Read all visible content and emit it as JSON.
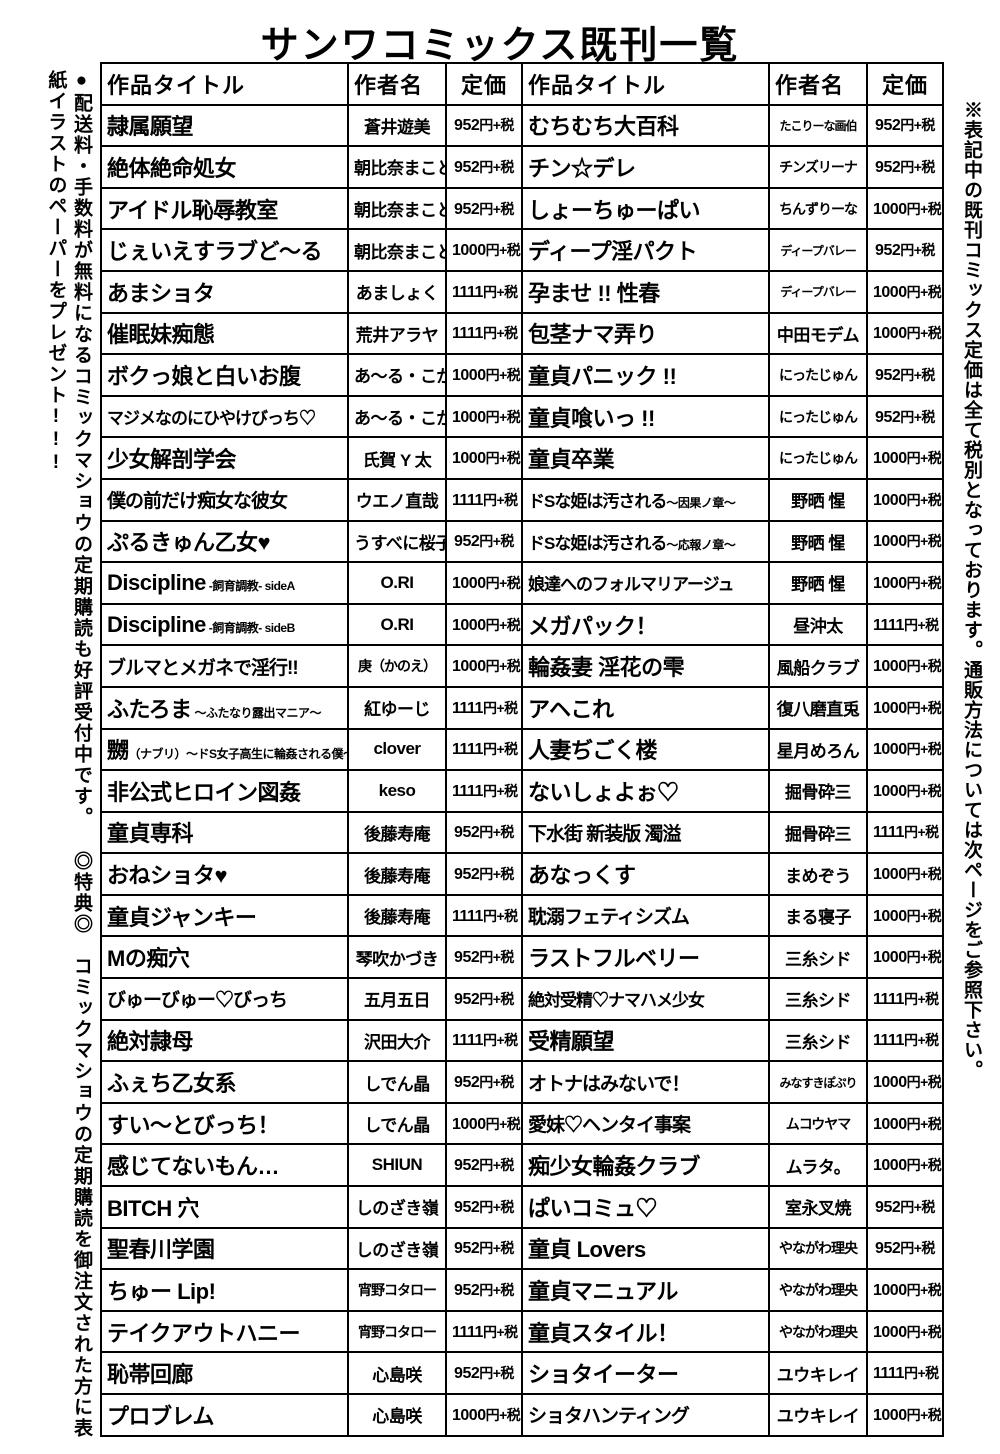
{
  "title": "サンワコミックス既刊一覧",
  "headers": {
    "title": "作品タイトル",
    "author": "作者名",
    "price": "定価"
  },
  "left_notes": {
    "line1": "●配送料・手数料が無料になるコミックマショウの定期購読も好評受付中です。",
    "line2": "◎特典◎　コミックマショウの定期購読を御注文された方に表紙イラストのペーパーをプレゼント!!!"
  },
  "right_note": "※表記中の既刊コミックス定価は全て税別となっております。通販方法については次ページをご参照下さい。",
  "price_suffix": "円+税",
  "left_rows": [
    {
      "title": "隷属願望",
      "author": "蒼井遊美",
      "price": "952"
    },
    {
      "title": "絶体絶命処女",
      "author": "朝比奈まこと",
      "price": "952"
    },
    {
      "title": "アイドル恥辱教室",
      "author": "朝比奈まこと",
      "price": "952"
    },
    {
      "title": "じぇいえすラブど〜る",
      "author": "朝比奈まこと",
      "price": "1000"
    },
    {
      "title": "あまショタ",
      "author": "あましょく",
      "price": "1111"
    },
    {
      "title": "催眠妹痴態",
      "author": "荒井アラヤ",
      "price": "1111"
    },
    {
      "title": "ボクっ娘と白いお腹",
      "author": "あ〜る・こが",
      "price": "1000"
    },
    {
      "title": "マジメなのにひやけびっち♡",
      "author": "あ〜る・こが",
      "price": "1000",
      "shrink": "shrink-2"
    },
    {
      "title": "少女解剖学会",
      "author": "氏賀 Y 太",
      "price": "1000"
    },
    {
      "title": "僕の前だけ痴女な彼女",
      "author": "ウエノ直哉",
      "price": "1111",
      "shrink": "shrink-1"
    },
    {
      "title": "ぷるきゅん乙女♥",
      "author": "うすべに桜子",
      "price": "952"
    },
    {
      "title": "Discipline",
      "sub": " ‐飼育調教‐ sideA",
      "author": "O.RI",
      "price": "1000"
    },
    {
      "title": "Discipline",
      "sub": " ‐飼育調教‐ sideB",
      "author": "O.RI",
      "price": "1000"
    },
    {
      "title": "ブルマとメガネで淫行!!",
      "author": "庚（かのえ）",
      "price": "1000",
      "shrink": "shrink-1",
      "au_shrink": "au-shrink"
    },
    {
      "title": "ふたろま",
      "sub": " 〜ふたなり露出マニア〜",
      "author": "紅ゆーじ",
      "price": "1111"
    },
    {
      "title": "嬲",
      "sub": "（ナブリ）〜ドS女子高生に輪姦される僕〜",
      "author": "clover",
      "price": "1111"
    },
    {
      "title": "非公式ヒロイン図姦",
      "author": "keso",
      "price": "1111"
    },
    {
      "title": "童貞専科",
      "author": "後藤寿庵",
      "price": "952"
    },
    {
      "title": "おねショタ♥",
      "author": "後藤寿庵",
      "price": "952"
    },
    {
      "title": "童貞ジャンキー",
      "author": "後藤寿庵",
      "price": "1111"
    },
    {
      "title": "Mの痴穴",
      "author": "琴吹かづき",
      "price": "952"
    },
    {
      "title": "びゅーびゅー♡びっち",
      "author": "五月五日",
      "price": "952",
      "shrink": "shrink-1"
    },
    {
      "title": "絶対隷母",
      "author": "沢田大介",
      "price": "1111"
    },
    {
      "title": "ふぇち乙女系",
      "author": "しでん晶",
      "price": "952"
    },
    {
      "title": "すい〜とびっち！",
      "author": "しでん晶",
      "price": "1000"
    },
    {
      "title": "感じてないもん…",
      "author": "SHIUN",
      "price": "952"
    },
    {
      "title": "BITCH 穴",
      "author": "しのざき嶺",
      "price": "952"
    },
    {
      "title": "聖春川学園",
      "author": "しのざき嶺",
      "price": "952"
    },
    {
      "title": "ちゅー Lip!",
      "author": "宵野コタロー",
      "price": "952",
      "au_shrink": "au-shrink"
    },
    {
      "title": "テイクアウトハニー",
      "author": "宵野コタロー",
      "price": "1111",
      "au_shrink": "au-shrink"
    },
    {
      "title": "恥帯回廊",
      "author": "心島咲",
      "price": "952"
    },
    {
      "title": "プロブレム",
      "author": "心島咲",
      "price": "1000"
    }
  ],
  "right_rows": [
    {
      "title": "むちむち大百科",
      "author": "たこりーな画伯",
      "price": "952",
      "au_shrink": "au-shrink2"
    },
    {
      "title": "チン☆デレ",
      "author": "チンズリーナ",
      "price": "952",
      "au_shrink": "au-shrink"
    },
    {
      "title": "しょーちゅーぱい",
      "author": "ちんずりーな",
      "price": "1000",
      "au_shrink": "au-shrink"
    },
    {
      "title": "ディープ淫パクト",
      "author": "ディープバレー",
      "price": "952",
      "au_shrink": "au-shrink2"
    },
    {
      "title": "孕ませ !! 性春",
      "author": "ディープバレー",
      "price": "1000",
      "au_shrink": "au-shrink2"
    },
    {
      "title": "包茎ナマ弄り",
      "author": "中田モデム",
      "price": "1000"
    },
    {
      "title": "童貞パニック !!",
      "author": "にったじゅん",
      "price": "952",
      "au_shrink": "au-shrink"
    },
    {
      "title": "童貞喰いっ !!",
      "author": "にったじゅん",
      "price": "952",
      "au_shrink": "au-shrink"
    },
    {
      "title": "童貞卒業",
      "author": "にったじゅん",
      "price": "1000",
      "au_shrink": "au-shrink"
    },
    {
      "title": "ドSな姫は汚される",
      "sub": "〜因果ノ章〜",
      "author": "野晒 惺",
      "price": "1000",
      "shrink": "shrink-2"
    },
    {
      "title": "ドSな姫は汚される",
      "sub": "〜応報ノ章〜",
      "author": "野晒 惺",
      "price": "1000",
      "shrink": "shrink-2"
    },
    {
      "title": "娘達へのフォルマリアージュ",
      "author": "野晒 惺",
      "price": "1000",
      "shrink": "shrink-2"
    },
    {
      "title": "メガパック！",
      "author": "昼沖太",
      "price": "1111"
    },
    {
      "title": "輪姦妻 淫花の雫",
      "author": "風船クラブ",
      "price": "1000"
    },
    {
      "title": "アヘこれ",
      "author": "復八磨直兎",
      "price": "1000"
    },
    {
      "title": "人妻ぢごく楼",
      "author": "星月めろん",
      "price": "1000"
    },
    {
      "title": "ないしょよぉ♡",
      "author": "掘骨砕三",
      "price": "1000"
    },
    {
      "title": "下水街 新装版 濁溢",
      "author": "掘骨砕三",
      "price": "1111",
      "shrink": "shrink-1"
    },
    {
      "title": "あなっくす",
      "author": "まめぞう",
      "price": "1000"
    },
    {
      "title": "耽溺フェティシズム",
      "author": "まる寝子",
      "price": "1000",
      "shrink": "shrink-1"
    },
    {
      "title": "ラストフルベリー",
      "author": "三糸シド",
      "price": "1000"
    },
    {
      "title": "絶対受精♡ナマハメ少女",
      "author": "三糸シド",
      "price": "1111",
      "shrink": "shrink-2"
    },
    {
      "title": "受精願望",
      "author": "三糸シド",
      "price": "1111"
    },
    {
      "title": "オトナはみないで！",
      "author": "みなすきぽぷり",
      "price": "1000",
      "shrink": "shrink-1",
      "au_shrink": "au-shrink2"
    },
    {
      "title": "愛妹♡ヘンタイ事案",
      "author": "ムコウヤマ",
      "price": "1000",
      "shrink": "shrink-1",
      "au_shrink": "au-shrink"
    },
    {
      "title": "痴少女輪姦クラブ",
      "author": "ムラタ。",
      "price": "1000"
    },
    {
      "title": "ぱいコミュ♡",
      "author": "室永叉焼",
      "price": "952"
    },
    {
      "title": "童貞 Lovers",
      "author": "やながわ理央",
      "price": "952",
      "au_shrink": "au-shrink"
    },
    {
      "title": "童貞マニュアル",
      "author": "やながわ理央",
      "price": "1000",
      "au_shrink": "au-shrink"
    },
    {
      "title": "童貞スタイル！",
      "author": "やながわ理央",
      "price": "1000",
      "au_shrink": "au-shrink"
    },
    {
      "title": "ショタイーター",
      "author": "ユウキレイ",
      "price": "1111"
    },
    {
      "title": "ショタハンティング",
      "author": "ユウキレイ",
      "price": "1000",
      "shrink": "shrink-1"
    }
  ]
}
